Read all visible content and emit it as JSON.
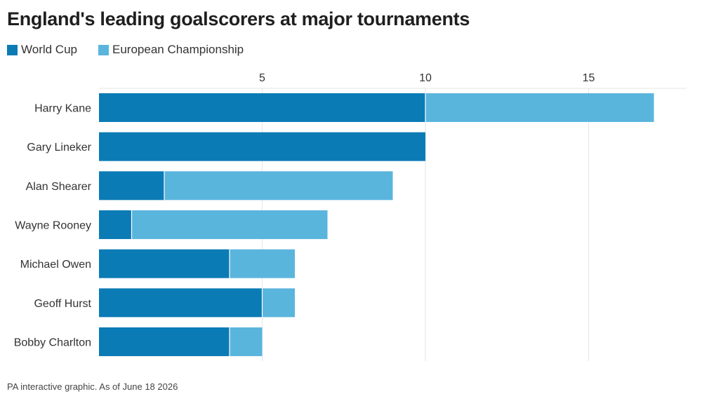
{
  "chart_data": {
    "type": "bar",
    "orientation": "horizontal",
    "stacked": true,
    "title": "England's leading goalscorers at major tournaments",
    "categories": [
      "Harry Kane",
      "Gary Lineker",
      "Alan Shearer",
      "Wayne Rooney",
      "Michael Owen",
      "Geoff Hurst",
      "Bobby Charlton"
    ],
    "series": [
      {
        "name": "World Cup",
        "color": "#0b7bb6",
        "values": [
          10,
          10,
          2,
          1,
          4,
          5,
          4
        ]
      },
      {
        "name": "European Championship",
        "color": "#5ab5dd",
        "values": [
          7,
          0,
          7,
          6,
          2,
          1,
          1
        ]
      }
    ],
    "xlim": [
      0,
      18
    ],
    "xticks": [
      "5",
      "10",
      "15"
    ],
    "xtick_values": [
      5,
      10,
      15
    ],
    "grid": true,
    "legend_position": "top-left"
  },
  "footer": "PA interactive graphic. As of June 18 2026"
}
